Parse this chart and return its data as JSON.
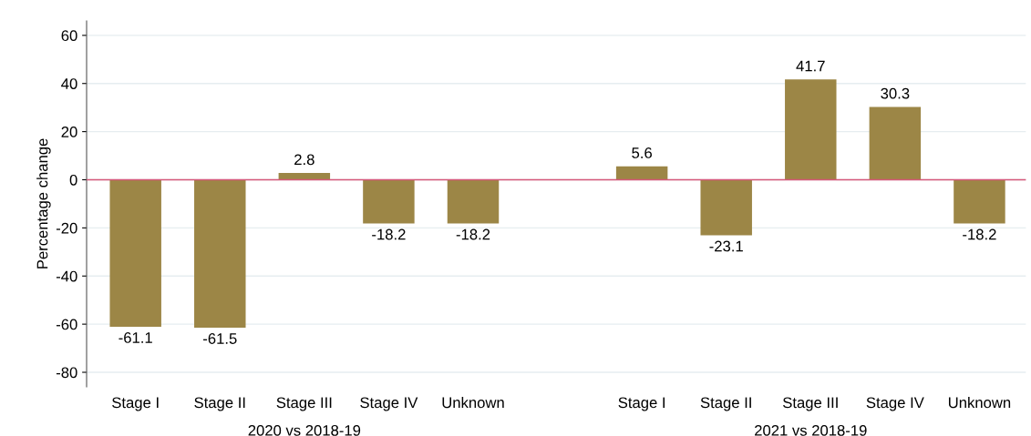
{
  "chart_data": {
    "type": "bar",
    "ylabel": "Percentage change",
    "categories": [
      "Stage I",
      "Stage II",
      "Stage III",
      "Stage IV",
      "Unknown",
      null,
      "Stage I",
      "Stage II",
      "Stage III",
      "Stage IV",
      "Unknown"
    ],
    "values": [
      -61.1,
      -61.5,
      2.8,
      -18.2,
      -18.2,
      null,
      5.6,
      -23.1,
      41.7,
      30.3,
      -18.2
    ],
    "color": "#9c8646",
    "data_labels": true,
    "ylim": [
      -86,
      66
    ],
    "yticks": [
      -80,
      -60,
      -40,
      -20,
      0,
      20,
      40,
      60
    ],
    "grid": "y",
    "ref_lines": [
      {
        "axis": "y",
        "value": 0,
        "color": "#d6577a"
      }
    ],
    "annotations": [
      "2020 vs 2018-19",
      "2021 vs 2018-19"
    ]
  }
}
